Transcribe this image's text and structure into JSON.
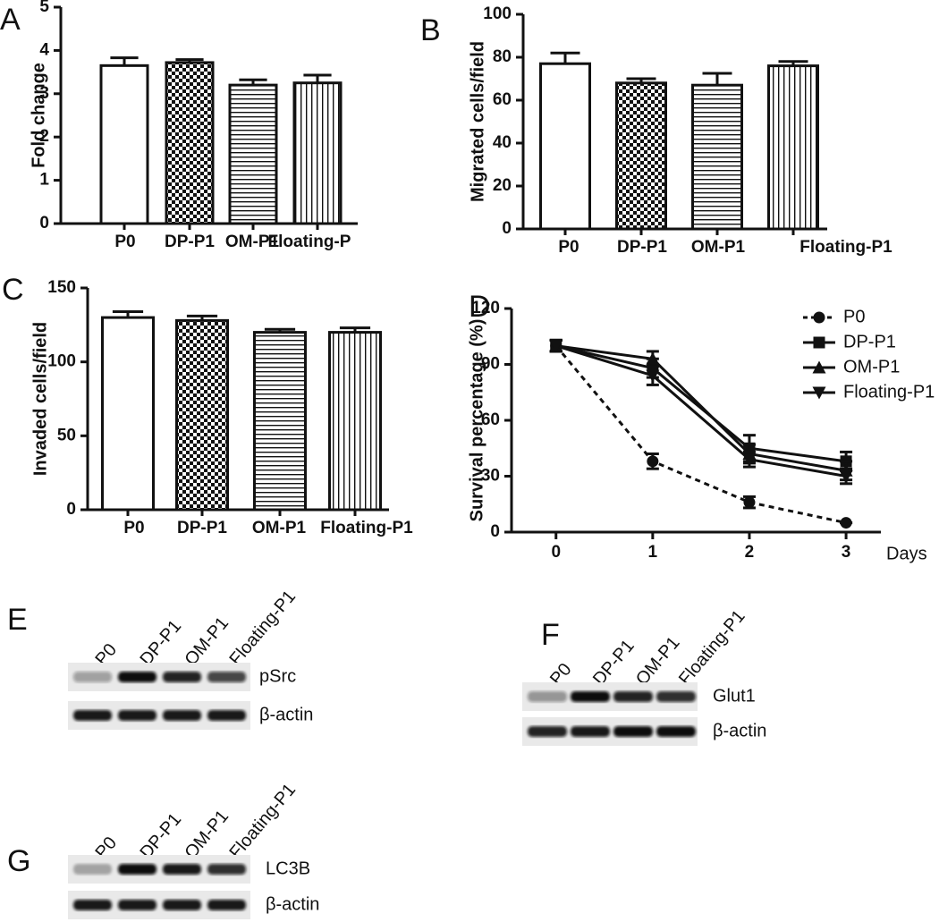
{
  "chart_data": [
    {
      "type": "bar",
      "panel": "A",
      "ylabel": "Fold change",
      "categories": [
        "P0",
        "DP-P1",
        "OM-P1",
        "Floating-P"
      ],
      "values": [
        3.65,
        3.72,
        3.2,
        3.25
      ],
      "errors": [
        0.18,
        0.07,
        0.12,
        0.18
      ],
      "ylim": [
        0,
        5
      ],
      "yticks": [
        0,
        1,
        2,
        3,
        4,
        5
      ],
      "color": "#111111"
    },
    {
      "type": "bar",
      "panel": "B",
      "ylabel": "Migrated cells/field",
      "categories": [
        "P0",
        "DP-P1",
        "OM-P1",
        "Floating-P1"
      ],
      "values": [
        77,
        68,
        67,
        76
      ],
      "errors": [
        5,
        2,
        5.5,
        2
      ],
      "ylim": [
        0,
        100
      ],
      "yticks": [
        0,
        20,
        40,
        60,
        80,
        100
      ],
      "color": "#111111"
    },
    {
      "type": "bar",
      "panel": "C",
      "ylabel": "Invaded cells/field",
      "categories": [
        "P0",
        "DP-P1",
        "OM-P1",
        "Floating-P1"
      ],
      "values": [
        130,
        128,
        120,
        120
      ],
      "errors": [
        4,
        3,
        2,
        3
      ],
      "ylim": [
        0,
        150
      ],
      "yticks": [
        0,
        50,
        100,
        150
      ],
      "color": "#111111"
    },
    {
      "type": "line",
      "panel": "D",
      "ylabel": "Survival percentage (%)",
      "xlabel": "Days",
      "x": [
        0,
        1,
        2,
        3
      ],
      "xlim": [
        -0.46,
        3.36
      ],
      "xticks": [
        0,
        1,
        2,
        3
      ],
      "ylim": [
        0,
        120
      ],
      "yticks": [
        0,
        30,
        60,
        90,
        120
      ],
      "legend": "upper right",
      "series": [
        {
          "name": "P0",
          "color": "#111111",
          "marker": "circle",
          "line_style": "dashed",
          "values": [
            100,
            38,
            16,
            5
          ],
          "errors": [
            3,
            4,
            3,
            0
          ]
        },
        {
          "name": "DP-P1",
          "color": "#111111",
          "marker": "square",
          "line_style": "solid",
          "values": [
            100,
            88,
            45,
            38
          ],
          "errors": [
            3,
            5,
            7,
            5
          ]
        },
        {
          "name": "OM-P1",
          "color": "#111111",
          "marker": "triangle",
          "line_style": "solid",
          "values": [
            100,
            93,
            42,
            33
          ],
          "errors": [
            3,
            4,
            5,
            5
          ]
        },
        {
          "name": "Floating-P1",
          "color": "#111111",
          "marker": "triangle-down",
          "line_style": "solid",
          "values": [
            100,
            84,
            39,
            30
          ],
          "errors": [
            3,
            5,
            4,
            4
          ]
        }
      ]
    }
  ],
  "blots": [
    {
      "panel": "E",
      "lanes": [
        "P0",
        "DP-P1",
        "OM-P1",
        "Floating-P1"
      ],
      "bands": [
        "pSrc",
        "β-actin"
      ]
    },
    {
      "panel": "F",
      "lanes": [
        "P0",
        "DP-P1",
        "OM-P1",
        "Floating-P1"
      ],
      "bands": [
        "Glut1",
        "β-actin"
      ]
    },
    {
      "panel": "G",
      "lanes": [
        "P0",
        "DP-P1",
        "OM-P1",
        "Floating-P1"
      ],
      "bands": [
        "LC3B",
        "β-actin"
      ]
    }
  ]
}
